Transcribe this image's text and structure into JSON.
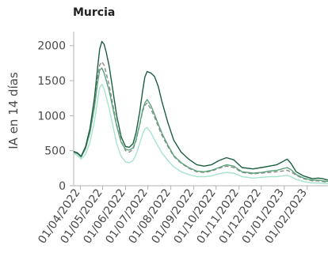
{
  "chart_data": {
    "type": "line",
    "title": "Murcia",
    "xlabel": "",
    "ylabel": "IA en 14 días",
    "x_range": [
      "2022-03-23",
      "2023-03-01"
    ],
    "ylim": [
      0,
      2200
    ],
    "y_ticks": [
      0,
      500,
      1000,
      1500,
      2000
    ],
    "x_ticks": [
      "01/04/2022",
      "01/05/2022",
      "01/06/2022",
      "01/07/2022",
      "01/08/2022",
      "01/09/2022",
      "01/10/2022",
      "01/11/2022",
      "01/12/2022",
      "01/01/2023",
      "01/02/2023"
    ],
    "grid": false,
    "legend": "none",
    "series": [
      {
        "color": "#1b5e3f",
        "style": "solid",
        "points": [
          [
            "2022-03-23",
            490
          ],
          [
            "2022-03-28",
            470
          ],
          [
            "2022-04-02",
            420
          ],
          [
            "2022-04-08",
            560
          ],
          [
            "2022-04-14",
            820
          ],
          [
            "2022-04-20",
            1250
          ],
          [
            "2022-04-24",
            1650
          ],
          [
            "2022-04-27",
            1950
          ],
          [
            "2022-04-30",
            2060
          ],
          [
            "2022-05-03",
            2020
          ],
          [
            "2022-05-06",
            1900
          ],
          [
            "2022-05-10",
            1700
          ],
          [
            "2022-05-15",
            1350
          ],
          [
            "2022-05-20",
            1000
          ],
          [
            "2022-05-26",
            700
          ],
          [
            "2022-06-01",
            560
          ],
          [
            "2022-06-06",
            550
          ],
          [
            "2022-06-11",
            600
          ],
          [
            "2022-06-15",
            750
          ],
          [
            "2022-06-20",
            1050
          ],
          [
            "2022-06-24",
            1350
          ],
          [
            "2022-06-27",
            1550
          ],
          [
            "2022-06-30",
            1630
          ],
          [
            "2022-07-05",
            1610
          ],
          [
            "2022-07-10",
            1560
          ],
          [
            "2022-07-15",
            1420
          ],
          [
            "2022-07-20",
            1200
          ],
          [
            "2022-07-28",
            900
          ],
          [
            "2022-08-05",
            650
          ],
          [
            "2022-08-15",
            480
          ],
          [
            "2022-08-25",
            380
          ],
          [
            "2022-09-05",
            300
          ],
          [
            "2022-09-15",
            280
          ],
          [
            "2022-09-25",
            300
          ],
          [
            "2022-10-05",
            360
          ],
          [
            "2022-10-15",
            400
          ],
          [
            "2022-10-25",
            370
          ],
          [
            "2022-11-05",
            260
          ],
          [
            "2022-11-20",
            240
          ],
          [
            "2022-12-01",
            260
          ],
          [
            "2022-12-12",
            280
          ],
          [
            "2022-12-22",
            300
          ],
          [
            "2022-12-29",
            340
          ],
          [
            "2023-01-05",
            380
          ],
          [
            "2023-01-10",
            320
          ],
          [
            "2023-01-17",
            200
          ],
          [
            "2023-01-27",
            140
          ],
          [
            "2023-02-08",
            100
          ],
          [
            "2023-02-16",
            110
          ],
          [
            "2023-02-22",
            100
          ],
          [
            "2023-03-01",
            80
          ]
        ]
      },
      {
        "color": "#5aa37a",
        "style": "solid",
        "points": [
          [
            "2022-03-23",
            490
          ],
          [
            "2022-03-28",
            460
          ],
          [
            "2022-04-02",
            410
          ],
          [
            "2022-04-08",
            530
          ],
          [
            "2022-04-14",
            760
          ],
          [
            "2022-04-20",
            1120
          ],
          [
            "2022-04-24",
            1450
          ],
          [
            "2022-04-27",
            1650
          ],
          [
            "2022-04-30",
            1680
          ],
          [
            "2022-05-03",
            1610
          ],
          [
            "2022-05-06",
            1500
          ],
          [
            "2022-05-10",
            1350
          ],
          [
            "2022-05-15",
            1100
          ],
          [
            "2022-05-20",
            850
          ],
          [
            "2022-05-26",
            620
          ],
          [
            "2022-06-01",
            520
          ],
          [
            "2022-06-06",
            510
          ],
          [
            "2022-06-11",
            540
          ],
          [
            "2022-06-15",
            650
          ],
          [
            "2022-06-20",
            880
          ],
          [
            "2022-06-24",
            1080
          ],
          [
            "2022-06-27",
            1180
          ],
          [
            "2022-06-30",
            1230
          ],
          [
            "2022-07-05",
            1150
          ],
          [
            "2022-07-10",
            1020
          ],
          [
            "2022-07-15",
            880
          ],
          [
            "2022-07-20",
            750
          ],
          [
            "2022-07-28",
            580
          ],
          [
            "2022-08-05",
            430
          ],
          [
            "2022-08-15",
            330
          ],
          [
            "2022-08-25",
            260
          ],
          [
            "2022-09-05",
            210
          ],
          [
            "2022-09-15",
            200
          ],
          [
            "2022-09-25",
            220
          ],
          [
            "2022-10-05",
            260
          ],
          [
            "2022-10-15",
            300
          ],
          [
            "2022-10-25",
            280
          ],
          [
            "2022-11-05",
            200
          ],
          [
            "2022-11-20",
            180
          ],
          [
            "2022-12-01",
            190
          ],
          [
            "2022-12-12",
            210
          ],
          [
            "2022-12-22",
            220
          ],
          [
            "2022-12-29",
            240
          ],
          [
            "2023-01-05",
            260
          ],
          [
            "2023-01-10",
            230
          ],
          [
            "2023-01-17",
            160
          ],
          [
            "2023-01-27",
            110
          ],
          [
            "2023-02-08",
            80
          ],
          [
            "2023-02-16",
            80
          ],
          [
            "2023-02-22",
            70
          ],
          [
            "2023-03-01",
            60
          ]
        ]
      },
      {
        "color": "#8a8a8a",
        "style": "dashed",
        "points": [
          [
            "2022-03-23",
            480
          ],
          [
            "2022-03-28",
            455
          ],
          [
            "2022-04-02",
            415
          ],
          [
            "2022-04-08",
            540
          ],
          [
            "2022-04-14",
            790
          ],
          [
            "2022-04-20",
            1180
          ],
          [
            "2022-04-24",
            1520
          ],
          [
            "2022-04-27",
            1720
          ],
          [
            "2022-04-30",
            1770
          ],
          [
            "2022-05-03",
            1720
          ],
          [
            "2022-05-06",
            1600
          ],
          [
            "2022-05-10",
            1430
          ],
          [
            "2022-05-15",
            1150
          ],
          [
            "2022-05-20",
            870
          ],
          [
            "2022-05-26",
            640
          ],
          [
            "2022-06-01",
            500
          ],
          [
            "2022-06-06",
            480
          ],
          [
            "2022-06-11",
            520
          ],
          [
            "2022-06-15",
            640
          ],
          [
            "2022-06-20",
            870
          ],
          [
            "2022-06-24",
            1060
          ],
          [
            "2022-06-27",
            1150
          ],
          [
            "2022-06-30",
            1180
          ],
          [
            "2022-07-05",
            1100
          ],
          [
            "2022-07-10",
            980
          ],
          [
            "2022-07-15",
            850
          ],
          [
            "2022-07-20",
            720
          ],
          [
            "2022-07-28",
            560
          ],
          [
            "2022-08-05",
            420
          ],
          [
            "2022-08-15",
            320
          ],
          [
            "2022-08-25",
            250
          ],
          [
            "2022-09-05",
            200
          ],
          [
            "2022-09-15",
            190
          ],
          [
            "2022-09-25",
            210
          ],
          [
            "2022-10-05",
            250
          ],
          [
            "2022-10-15",
            280
          ],
          [
            "2022-10-25",
            260
          ],
          [
            "2022-11-05",
            190
          ],
          [
            "2022-11-20",
            170
          ],
          [
            "2022-12-01",
            180
          ],
          [
            "2022-12-12",
            190
          ],
          [
            "2022-12-22",
            200
          ],
          [
            "2022-12-29",
            210
          ],
          [
            "2023-01-05",
            220
          ],
          [
            "2023-01-10",
            200
          ],
          [
            "2023-01-17",
            150
          ],
          [
            "2023-01-27",
            100
          ],
          [
            "2023-02-08",
            70
          ],
          [
            "2023-02-16",
            70
          ],
          [
            "2023-02-22",
            60
          ],
          [
            "2023-03-01",
            50
          ]
        ]
      },
      {
        "color": "#a6e3cf",
        "style": "solid",
        "points": [
          [
            "2022-03-23",
            460
          ],
          [
            "2022-03-28",
            430
          ],
          [
            "2022-04-02",
            380
          ],
          [
            "2022-04-08",
            450
          ],
          [
            "2022-04-14",
            620
          ],
          [
            "2022-04-20",
            920
          ],
          [
            "2022-04-24",
            1200
          ],
          [
            "2022-04-27",
            1400
          ],
          [
            "2022-04-30",
            1450
          ],
          [
            "2022-05-03",
            1380
          ],
          [
            "2022-05-06",
            1260
          ],
          [
            "2022-05-10",
            1100
          ],
          [
            "2022-05-15",
            850
          ],
          [
            "2022-05-20",
            600
          ],
          [
            "2022-05-26",
            420
          ],
          [
            "2022-06-01",
            340
          ],
          [
            "2022-06-06",
            330
          ],
          [
            "2022-06-11",
            360
          ],
          [
            "2022-06-15",
            440
          ],
          [
            "2022-06-20",
            600
          ],
          [
            "2022-06-24",
            740
          ],
          [
            "2022-06-27",
            810
          ],
          [
            "2022-06-30",
            830
          ],
          [
            "2022-07-05",
            760
          ],
          [
            "2022-07-10",
            660
          ],
          [
            "2022-07-15",
            560
          ],
          [
            "2022-07-20",
            470
          ],
          [
            "2022-07-28",
            360
          ],
          [
            "2022-08-05",
            270
          ],
          [
            "2022-08-15",
            200
          ],
          [
            "2022-08-25",
            160
          ],
          [
            "2022-09-05",
            130
          ],
          [
            "2022-09-15",
            130
          ],
          [
            "2022-09-25",
            140
          ],
          [
            "2022-10-05",
            170
          ],
          [
            "2022-10-15",
            190
          ],
          [
            "2022-10-25",
            180
          ],
          [
            "2022-11-05",
            130
          ],
          [
            "2022-11-20",
            110
          ],
          [
            "2022-12-01",
            120
          ],
          [
            "2022-12-12",
            130
          ],
          [
            "2022-12-22",
            130
          ],
          [
            "2022-12-29",
            140
          ],
          [
            "2023-01-05",
            150
          ],
          [
            "2023-01-10",
            130
          ],
          [
            "2023-01-17",
            90
          ],
          [
            "2023-01-27",
            60
          ],
          [
            "2023-02-08",
            40
          ],
          [
            "2023-02-16",
            40
          ],
          [
            "2023-02-22",
            35
          ],
          [
            "2023-03-01",
            30
          ]
        ]
      }
    ]
  }
}
